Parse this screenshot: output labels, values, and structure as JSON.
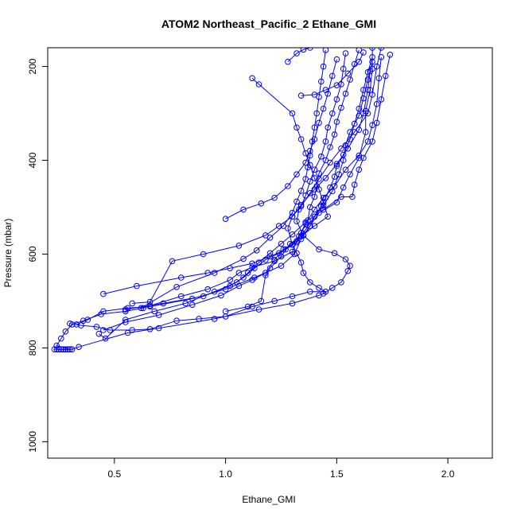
{
  "chart_data": {
    "type": "line",
    "title": "ATOM2 Northeast_Pacific_2 Ethane_GMI",
    "xlabel": "Ethane_GMI",
    "ylabel": "Pressure (mbar)",
    "xlim": [
      0.2,
      2.2
    ],
    "ylim": [
      1035,
      160
    ],
    "y_reversed": true,
    "x_ticks": [
      0.5,
      1.0,
      1.5,
      2.0
    ],
    "x_tick_labels": [
      "0.5",
      "1.0",
      "1.5",
      "2.0"
    ],
    "y_ticks": [
      200,
      400,
      600,
      800,
      1000
    ],
    "y_tick_labels": [
      "200",
      "400",
      "600",
      "800",
      "1000"
    ],
    "grid": false,
    "color": "#0000ff",
    "marker": "open-circle",
    "series": [
      {
        "points": [
          [
            0.23,
            803
          ],
          [
            0.25,
            803
          ],
          [
            0.27,
            803
          ],
          [
            0.29,
            803
          ],
          [
            0.31,
            803
          ],
          [
            0.34,
            798
          ],
          [
            0.56,
            768
          ],
          [
            0.7,
            758
          ],
          [
            0.95,
            738
          ],
          [
            1.15,
            718
          ],
          [
            1.3,
            705
          ],
          [
            1.42,
            688
          ],
          [
            1.44,
            684
          ],
          [
            1.48,
            672
          ],
          [
            1.52,
            660
          ],
          [
            1.55,
            636
          ],
          [
            1.56,
            625
          ],
          [
            1.54,
            611
          ],
          [
            1.49,
            598
          ],
          [
            1.42,
            590
          ],
          [
            1.35,
            560
          ],
          [
            1.32,
            530
          ],
          [
            1.33,
            505
          ],
          [
            1.38,
            470
          ],
          [
            1.42,
            440
          ],
          [
            1.47,
            405
          ],
          [
            1.52,
            375
          ],
          [
            1.58,
            340
          ],
          [
            1.64,
            300
          ],
          [
            1.66,
            260
          ],
          [
            1.68,
            200
          ],
          [
            1.7,
            160
          ]
        ]
      },
      {
        "points": [
          [
            0.24,
            803
          ],
          [
            0.26,
            803
          ],
          [
            0.28,
            803
          ],
          [
            0.3,
            803
          ],
          [
            0.24,
            795
          ],
          [
            0.26,
            780
          ],
          [
            0.28,
            765
          ],
          [
            0.31,
            750
          ],
          [
            0.36,
            742
          ],
          [
            0.44,
            728
          ],
          [
            0.55,
            722
          ],
          [
            0.63,
            715
          ],
          [
            0.66,
            710
          ],
          [
            0.8,
            690
          ],
          [
            0.92,
            675
          ],
          [
            1.02,
            655
          ],
          [
            1.06,
            640
          ],
          [
            1.12,
            628
          ],
          [
            1.22,
            615
          ],
          [
            1.3,
            595
          ],
          [
            1.33,
            562
          ],
          [
            1.36,
            535
          ],
          [
            1.4,
            505
          ],
          [
            1.44,
            480
          ],
          [
            1.49,
            455
          ],
          [
            1.54,
            420
          ],
          [
            1.6,
            390
          ],
          [
            1.64,
            360
          ],
          [
            1.66,
            325
          ],
          [
            1.68,
            280
          ],
          [
            1.69,
            225
          ],
          [
            1.7,
            180
          ]
        ]
      },
      {
        "points": [
          [
            0.33,
            750
          ],
          [
            0.38,
            740
          ],
          [
            0.45,
            722
          ],
          [
            0.56,
            715
          ],
          [
            0.66,
            712
          ],
          [
            0.85,
            695
          ],
          [
            1.0,
            675
          ],
          [
            1.13,
            650
          ],
          [
            1.25,
            625
          ],
          [
            1.31,
            600
          ],
          [
            1.34,
            568
          ],
          [
            1.38,
            540
          ],
          [
            1.42,
            512
          ],
          [
            1.5,
            490
          ],
          [
            1.53,
            458
          ],
          [
            1.56,
            430
          ],
          [
            1.6,
            395
          ],
          [
            1.63,
            340
          ],
          [
            1.63,
            295
          ],
          [
            1.65,
            250
          ],
          [
            1.66,
            205
          ],
          [
            1.66,
            160
          ]
        ]
      },
      {
        "points": [
          [
            0.3,
            748
          ],
          [
            0.35,
            752
          ],
          [
            0.42,
            755
          ],
          [
            0.48,
            762
          ],
          [
            0.58,
            762
          ],
          [
            0.66,
            760
          ],
          [
            0.78,
            742
          ],
          [
            0.88,
            738
          ],
          [
            1.0,
            733
          ],
          [
            1.12,
            712
          ],
          [
            1.22,
            700
          ],
          [
            1.3,
            690
          ],
          [
            1.38,
            680
          ],
          [
            1.45,
            680
          ],
          [
            1.42,
            672
          ],
          [
            1.38,
            660
          ],
          [
            1.35,
            640
          ],
          [
            1.34,
            618
          ],
          [
            1.32,
            598
          ],
          [
            1.3,
            580
          ],
          [
            1.28,
            545
          ],
          [
            1.3,
            520
          ],
          [
            1.34,
            495
          ],
          [
            1.4,
            462
          ],
          [
            1.45,
            438
          ],
          [
            1.5,
            408
          ],
          [
            1.55,
            375
          ],
          [
            1.6,
            335
          ],
          [
            1.62,
            300
          ],
          [
            1.64,
            250
          ],
          [
            1.65,
            210
          ]
        ]
      },
      {
        "points": [
          [
            0.45,
            762
          ],
          [
            0.55,
            745
          ],
          [
            0.7,
            730
          ],
          [
            0.85,
            708
          ],
          [
            0.98,
            688
          ],
          [
            1.06,
            668
          ],
          [
            1.12,
            655
          ],
          [
            1.18,
            640
          ],
          [
            1.22,
            612
          ],
          [
            1.26,
            590
          ],
          [
            1.32,
            572
          ],
          [
            1.36,
            548
          ],
          [
            1.4,
            520
          ],
          [
            1.44,
            496
          ],
          [
            1.48,
            466
          ],
          [
            1.51,
            430
          ],
          [
            1.53,
            400
          ],
          [
            1.54,
            368
          ],
          [
            1.56,
            340
          ],
          [
            1.6,
            305
          ],
          [
            1.62,
            268
          ],
          [
            1.64,
            228
          ],
          [
            1.66,
            190
          ]
        ]
      },
      {
        "points": [
          [
            0.43,
            770
          ],
          [
            0.46,
            780
          ],
          [
            0.55,
            740
          ],
          [
            0.68,
            722
          ],
          [
            0.82,
            705
          ],
          [
            0.95,
            680
          ],
          [
            1.05,
            660
          ],
          [
            1.1,
            640
          ],
          [
            1.15,
            618
          ],
          [
            1.2,
            598
          ],
          [
            1.25,
            578
          ],
          [
            1.3,
            558
          ],
          [
            1.36,
            532
          ],
          [
            1.44,
            505
          ],
          [
            1.52,
            478
          ],
          [
            1.57,
            478
          ],
          [
            1.58,
            452
          ],
          [
            1.6,
            420
          ],
          [
            1.62,
            395
          ],
          [
            1.66,
            360
          ],
          [
            1.68,
            320
          ],
          [
            1.7,
            270
          ],
          [
            1.72,
            220
          ],
          [
            1.74,
            175
          ]
        ]
      },
      {
        "points": [
          [
            0.45,
            685
          ],
          [
            0.6,
            668
          ],
          [
            0.8,
            650
          ],
          [
            0.92,
            640
          ],
          [
            1.02,
            630
          ],
          [
            1.12,
            620
          ],
          [
            1.2,
            605
          ],
          [
            1.27,
            590
          ],
          [
            1.32,
            575
          ],
          [
            1.35,
            560
          ],
          [
            1.38,
            540
          ],
          [
            1.4,
            520
          ],
          [
            1.43,
            498
          ],
          [
            1.45,
            480
          ],
          [
            1.47,
            458
          ],
          [
            1.49,
            435
          ],
          [
            1.5,
            412
          ],
          [
            1.53,
            388
          ],
          [
            1.56,
            355
          ],
          [
            1.58,
            322
          ],
          [
            1.6,
            290
          ],
          [
            1.62,
            250
          ],
          [
            1.64,
            212
          ],
          [
            1.66,
            180
          ]
        ]
      },
      {
        "points": [
          [
            0.55,
            718
          ],
          [
            0.72,
            705
          ],
          [
            0.9,
            690
          ],
          [
            1.02,
            668
          ],
          [
            1.08,
            650
          ],
          [
            1.13,
            630
          ],
          [
            1.18,
            612
          ],
          [
            1.24,
            598
          ],
          [
            1.3,
            580
          ],
          [
            1.34,
            555
          ],
          [
            1.37,
            528
          ],
          [
            1.38,
            500
          ],
          [
            1.4,
            478
          ],
          [
            1.41,
            455
          ],
          [
            1.42,
            428
          ],
          [
            1.45,
            400
          ],
          [
            1.47,
            372
          ],
          [
            1.49,
            345
          ],
          [
            1.5,
            318
          ],
          [
            1.52,
            288
          ],
          [
            1.54,
            258
          ],
          [
            1.56,
            228
          ],
          [
            1.58,
            195
          ],
          [
            1.6,
            165
          ]
        ]
      },
      {
        "points": [
          [
            0.58,
            705
          ],
          [
            0.66,
            702
          ],
          [
            0.76,
            615
          ],
          [
            0.9,
            600
          ],
          [
            1.06,
            582
          ],
          [
            1.18,
            560
          ],
          [
            1.24,
            540
          ],
          [
            1.3,
            520
          ],
          [
            1.34,
            498
          ],
          [
            1.36,
            475
          ],
          [
            1.38,
            445
          ],
          [
            1.4,
            420
          ],
          [
            1.43,
            392
          ],
          [
            1.45,
            360
          ],
          [
            1.46,
            330
          ],
          [
            1.48,
            300
          ],
          [
            1.5,
            270
          ],
          [
            1.52,
            238
          ],
          [
            1.53,
            205
          ],
          [
            1.54,
            172
          ]
        ]
      },
      {
        "points": [
          [
            0.62,
            715
          ],
          [
            0.78,
            670
          ],
          [
            0.95,
            640
          ],
          [
            1.08,
            610
          ],
          [
            1.14,
            592
          ],
          [
            1.2,
            565
          ],
          [
            1.26,
            540
          ],
          [
            1.3,
            512
          ],
          [
            1.32,
            488
          ],
          [
            1.34,
            465
          ],
          [
            1.36,
            440
          ],
          [
            1.37,
            415
          ],
          [
            1.38,
            390
          ],
          [
            1.39,
            360
          ],
          [
            1.4,
            330
          ],
          [
            1.41,
            300
          ],
          [
            1.42,
            265
          ],
          [
            1.43,
            232
          ],
          [
            1.44,
            200
          ],
          [
            1.45,
            165
          ]
        ]
      },
      {
        "points": [
          [
            1.12,
            225
          ],
          [
            1.15,
            238
          ],
          [
            1.3,
            300
          ],
          [
            1.32,
            330
          ],
          [
            1.34,
            355
          ],
          [
            1.36,
            385
          ],
          [
            1.38,
            410
          ],
          [
            1.4,
            438
          ],
          [
            1.42,
            462
          ],
          [
            1.44,
            490
          ],
          [
            1.46,
            520
          ],
          [
            1.4,
            540
          ],
          [
            1.34,
            562
          ],
          [
            1.29,
            578
          ],
          [
            1.25,
            605
          ],
          [
            1.2,
            630
          ],
          [
            1.18,
            645
          ],
          [
            1.16,
            700
          ],
          [
            1.1,
            712
          ],
          [
            1.0,
            722
          ]
        ]
      },
      {
        "points": [
          [
            1.0,
            525
          ],
          [
            1.08,
            505
          ],
          [
            1.16,
            492
          ],
          [
            1.22,
            480
          ],
          [
            1.28,
            455
          ],
          [
            1.32,
            430
          ],
          [
            1.36,
            405
          ],
          [
            1.38,
            380
          ],
          [
            1.4,
            355
          ],
          [
            1.42,
            320
          ],
          [
            1.44,
            290
          ],
          [
            1.46,
            258
          ],
          [
            1.48,
            220
          ],
          [
            1.5,
            185
          ]
        ]
      },
      {
        "points": [
          [
            1.28,
            190
          ],
          [
            1.32,
            172
          ],
          [
            1.35,
            164
          ],
          [
            1.38,
            160
          ]
        ]
      },
      {
        "points": [
          [
            1.34,
            262
          ],
          [
            1.4,
            260
          ],
          [
            1.45,
            250
          ],
          [
            1.5,
            240
          ],
          [
            1.55,
            215
          ],
          [
            1.6,
            190
          ],
          [
            1.62,
            170
          ]
        ]
      }
    ]
  }
}
